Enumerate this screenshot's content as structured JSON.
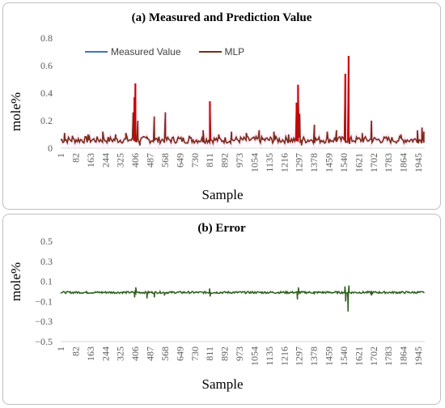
{
  "chart_data": [
    {
      "type": "line",
      "title": "(a) Measured and Prediction  Value",
      "xlabel": "Sample",
      "ylabel": "mole%",
      "ylim": [
        0,
        0.8
      ],
      "yticks": [
        "0",
        "0.2",
        "0.4",
        "0.6",
        "0.8"
      ],
      "xticks": [
        "1",
        "82",
        "163",
        "244",
        "325",
        "406",
        "487",
        "568",
        "649",
        "730",
        "811",
        "892",
        "973",
        "1054",
        "1135",
        "1216",
        "1297",
        "1378",
        "1459",
        "1540",
        "1621",
        "1702",
        "1783",
        "1864",
        "1945"
      ],
      "x_range": [
        1,
        1980
      ],
      "legend_position": "top-left",
      "series": [
        {
          "name": "Measured Value",
          "color": "#4472c4"
        },
        {
          "name": "MLP",
          "color": "#7b2c1a"
        }
      ],
      "baseline": 0.06,
      "noise": 0.025,
      "peaks": [
        {
          "x": 22,
          "y": 0.11
        },
        {
          "x": 65,
          "y": 0.09
        },
        {
          "x": 150,
          "y": 0.1
        },
        {
          "x": 230,
          "y": 0.12
        },
        {
          "x": 300,
          "y": 0.1
        },
        {
          "x": 355,
          "y": 0.11
        },
        {
          "x": 395,
          "y": 0.26
        },
        {
          "x": 402,
          "y": 0.37
        },
        {
          "x": 407,
          "y": 0.47
        },
        {
          "x": 420,
          "y": 0.2
        },
        {
          "x": 432,
          "y": 0.02
        },
        {
          "x": 470,
          "y": 0.08
        },
        {
          "x": 510,
          "y": 0.23
        },
        {
          "x": 570,
          "y": 0.26
        },
        {
          "x": 640,
          "y": 0.08
        },
        {
          "x": 700,
          "y": 0.09
        },
        {
          "x": 775,
          "y": 0.13
        },
        {
          "x": 812,
          "y": 0.34
        },
        {
          "x": 860,
          "y": 0.1
        },
        {
          "x": 930,
          "y": 0.12
        },
        {
          "x": 1010,
          "y": 0.11
        },
        {
          "x": 1080,
          "y": 0.13
        },
        {
          "x": 1160,
          "y": 0.12
        },
        {
          "x": 1240,
          "y": 0.1
        },
        {
          "x": 1283,
          "y": 0.33
        },
        {
          "x": 1291,
          "y": 0.46
        },
        {
          "x": 1300,
          "y": 0.25
        },
        {
          "x": 1310,
          "y": 0.02
        },
        {
          "x": 1380,
          "y": 0.17
        },
        {
          "x": 1450,
          "y": 0.12
        },
        {
          "x": 1500,
          "y": 0.13
        },
        {
          "x": 1548,
          "y": 0.54
        },
        {
          "x": 1552,
          "y": 0.05
        },
        {
          "x": 1566,
          "y": 0.67
        },
        {
          "x": 1572,
          "y": 0.03
        },
        {
          "x": 1640,
          "y": 0.11
        },
        {
          "x": 1690,
          "y": 0.2
        },
        {
          "x": 1760,
          "y": 0.08
        },
        {
          "x": 1850,
          "y": 0.1
        },
        {
          "x": 1940,
          "y": 0.13
        },
        {
          "x": 1965,
          "y": 0.15
        },
        {
          "x": 1975,
          "y": 0.12
        }
      ]
    },
    {
      "type": "line",
      "title": "(b) Error",
      "xlabel": "Sample",
      "ylabel": "mole%",
      "ylim": [
        -0.5,
        0.5
      ],
      "yticks": [
        "0.5",
        "0.3",
        "0.1",
        "−0.1",
        "−0.3",
        "−0.5"
      ],
      "xticks": [
        "1",
        "82",
        "163",
        "244",
        "325",
        "406",
        "487",
        "568",
        "649",
        "730",
        "811",
        "892",
        "973",
        "1054",
        "1135",
        "1216",
        "1297",
        "1378",
        "1459",
        "1540",
        "1621",
        "1702",
        "1783",
        "1864",
        "1945"
      ],
      "x_range": [
        1,
        1980
      ],
      "series": [
        {
          "name": "",
          "color": "#2e5e1e"
        }
      ],
      "baseline": -0.01,
      "noise": 0.01,
      "spikes": [
        {
          "x": 403,
          "y": -0.06
        },
        {
          "x": 409,
          "y": 0.04
        },
        {
          "x": 470,
          "y": -0.07
        },
        {
          "x": 510,
          "y": -0.06
        },
        {
          "x": 565,
          "y": -0.04
        },
        {
          "x": 810,
          "y": 0.03
        },
        {
          "x": 813,
          "y": -0.05
        },
        {
          "x": 1288,
          "y": -0.08
        },
        {
          "x": 1293,
          "y": 0.04
        },
        {
          "x": 1380,
          "y": -0.03
        },
        {
          "x": 1546,
          "y": 0.05
        },
        {
          "x": 1550,
          "y": -0.1
        },
        {
          "x": 1563,
          "y": -0.2
        },
        {
          "x": 1568,
          "y": 0.06
        },
        {
          "x": 1690,
          "y": -0.04
        }
      ]
    }
  ]
}
